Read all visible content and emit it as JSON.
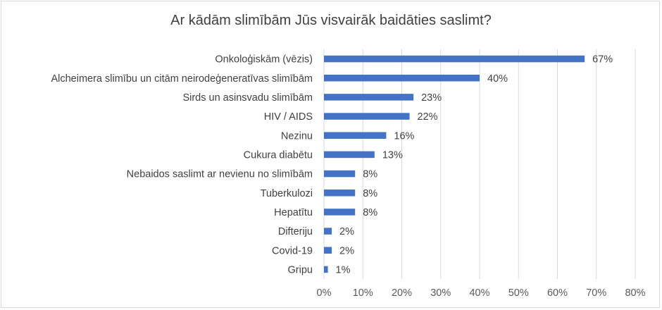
{
  "chart_data": {
    "type": "bar",
    "orientation": "horizontal",
    "title": "Ar kādām slimībām Jūs visvairāk baidāties saslimt?",
    "categories": [
      "Onkoloģiskām (vēzis)",
      "Alcheimera slimību un citām neirodeģeneratīvas slimībām",
      "Sirds un asinsvadu slimībām",
      "HIV / AIDS",
      "Nezinu",
      "Cukura diabētu",
      "Nebaidos saslimt ar nevienu no slimībām",
      "Tuberkulozi",
      "Hepatītu",
      "Difteriju",
      "Covid-19",
      "Gripu"
    ],
    "values": [
      67,
      40,
      23,
      22,
      16,
      13,
      8,
      8,
      8,
      2,
      2,
      1
    ],
    "data_labels": [
      "67%",
      "40%",
      "23%",
      "22%",
      "16%",
      "13%",
      "8%",
      "8%",
      "8%",
      "2%",
      "2%",
      "1%"
    ],
    "xlim": [
      0,
      80
    ],
    "x_ticks": [
      0,
      10,
      20,
      30,
      40,
      50,
      60,
      70,
      80
    ],
    "x_tick_labels": [
      "0%",
      "10%",
      "20%",
      "30%",
      "40%",
      "50%",
      "60%",
      "70%",
      "80%"
    ],
    "grid": true,
    "legend": "none",
    "colors": {
      "bar": "#4472c4",
      "grid": "#d9d9d9",
      "text": "#404040"
    }
  }
}
